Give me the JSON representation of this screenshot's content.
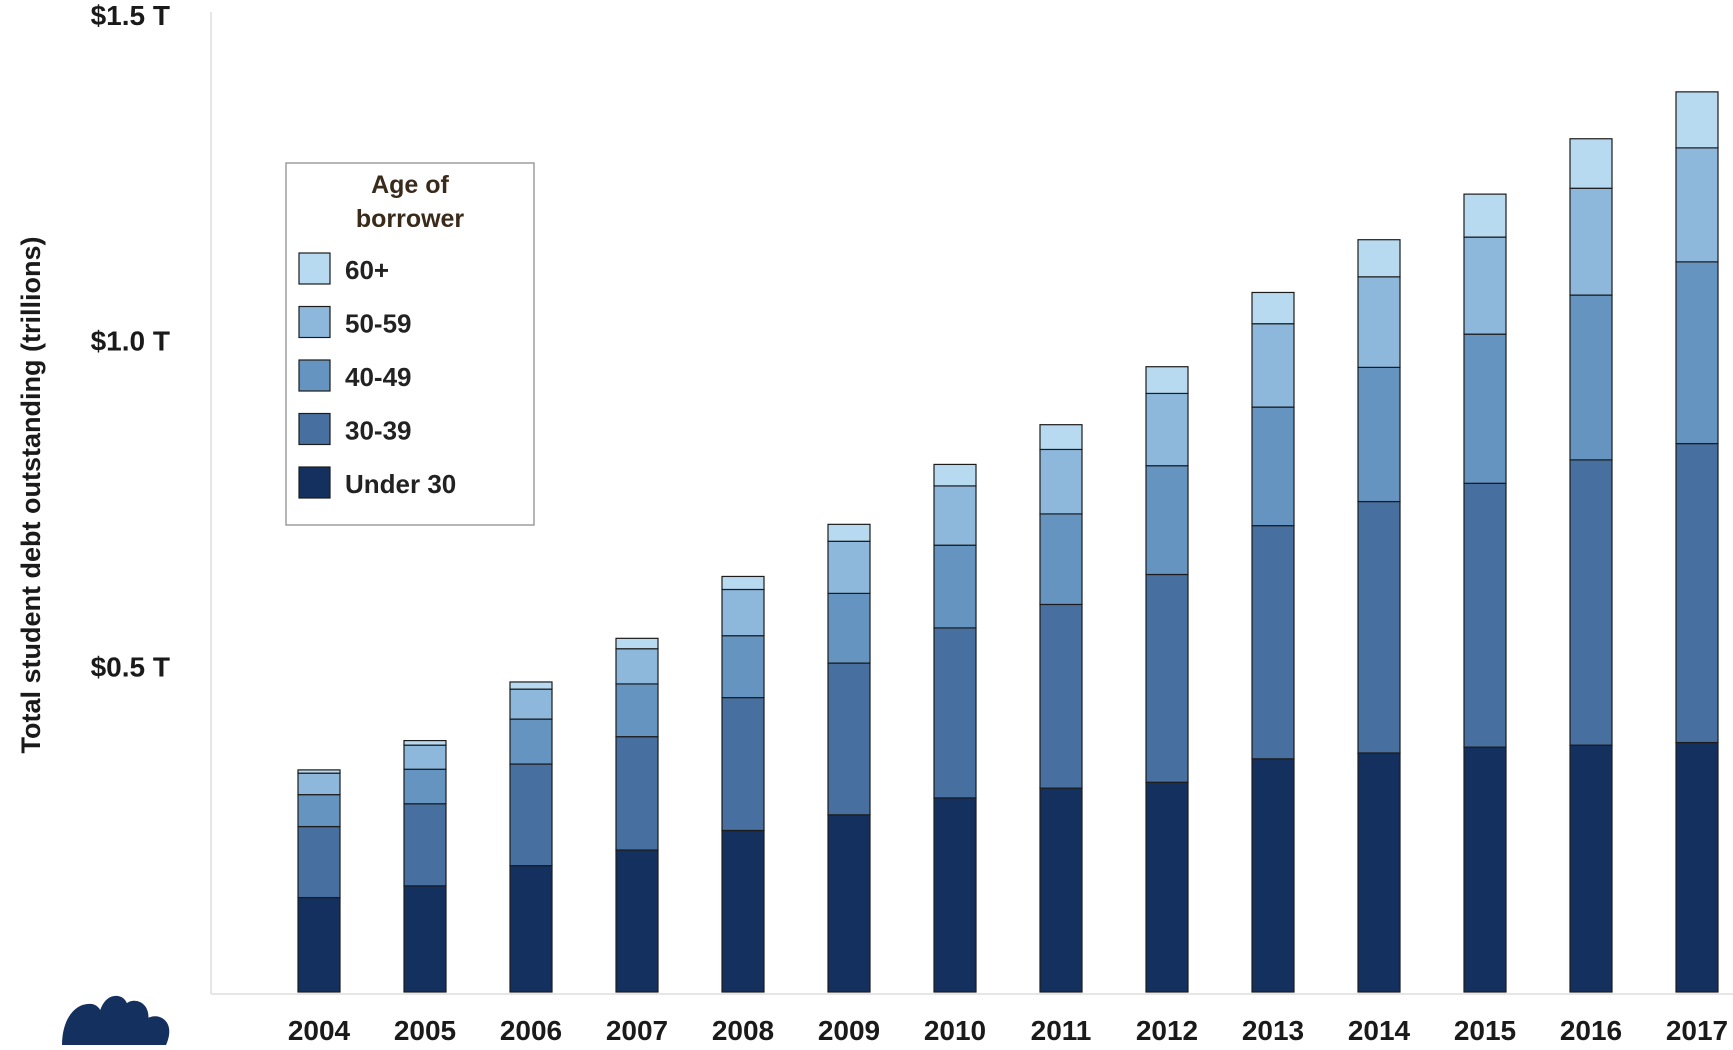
{
  "chart_data": {
    "type": "bar",
    "stacked": true,
    "ylabel": "Total student debt outstanding (trillions)",
    "ylim": [
      0,
      1.5
    ],
    "yticks": [
      {
        "value": 0.5,
        "label": "$0.5 T"
      },
      {
        "value": 1.0,
        "label": "$1.0 T"
      },
      {
        "value": 1.5,
        "label": "$1.5 T"
      }
    ],
    "categories": [
      "2004",
      "2005",
      "2006",
      "2007",
      "2008",
      "2009",
      "2010",
      "2011",
      "2012",
      "2013",
      "2014",
      "2015",
      "2016",
      "2017"
    ],
    "legend_title": "Age of borrower",
    "legend_placement": "upper-left",
    "series": [
      {
        "name": "Under 30",
        "color": "#14305e",
        "values": [
          0.145,
          0.163,
          0.194,
          0.218,
          0.248,
          0.272,
          0.298,
          0.313,
          0.322,
          0.358,
          0.367,
          0.376,
          0.379,
          0.383
        ]
      },
      {
        "name": "30-39",
        "color": "#476f9f",
        "values": [
          0.109,
          0.126,
          0.156,
          0.174,
          0.204,
          0.233,
          0.261,
          0.282,
          0.319,
          0.358,
          0.386,
          0.405,
          0.438,
          0.459
        ]
      },
      {
        "name": "40-49",
        "color": "#6694c0",
        "values": [
          0.049,
          0.053,
          0.069,
          0.081,
          0.095,
          0.107,
          0.127,
          0.139,
          0.167,
          0.182,
          0.206,
          0.229,
          0.253,
          0.279
        ]
      },
      {
        "name": "50-59",
        "color": "#8db8dc",
        "values": [
          0.033,
          0.037,
          0.046,
          0.054,
          0.071,
          0.08,
          0.091,
          0.099,
          0.111,
          0.128,
          0.139,
          0.149,
          0.164,
          0.175
        ]
      },
      {
        "name": "60+",
        "color": "#b7daf1",
        "values": [
          0.005,
          0.007,
          0.011,
          0.016,
          0.02,
          0.026,
          0.033,
          0.038,
          0.041,
          0.048,
          0.057,
          0.066,
          0.076,
          0.086
        ]
      }
    ]
  }
}
